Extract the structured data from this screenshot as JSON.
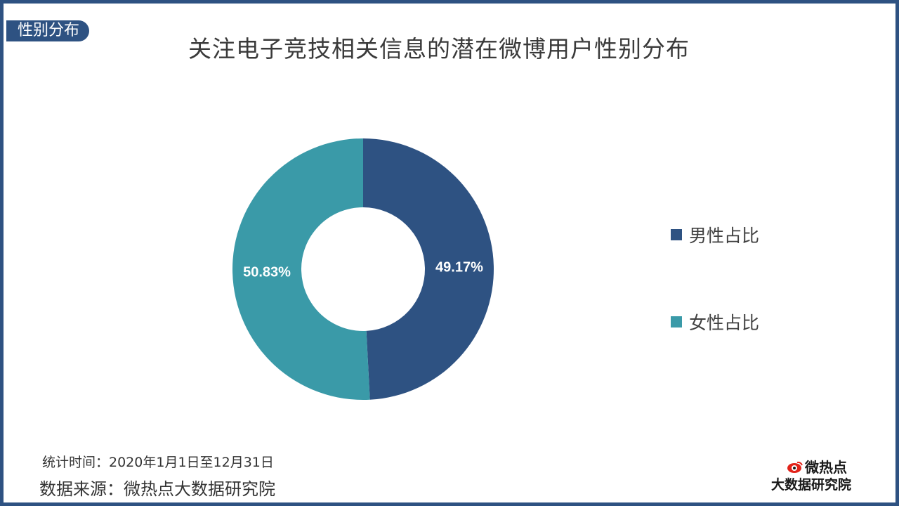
{
  "section_badge": "性别分布",
  "footer": {
    "period": "统计时间：2020年1月1日至12月31日",
    "source": "数据来源：微热点大数据研究院"
  },
  "logo": {
    "brand": "微热点",
    "subtitle": "大数据研究院"
  },
  "colors": {
    "frame": "#2e5282",
    "male": "#2e5282",
    "female": "#3a9aa8"
  },
  "chart_data": {
    "type": "pie",
    "variant": "donut",
    "title": "关注电子竞技相关信息的潜在微博用户性别分布",
    "start_angle_deg": 0,
    "direction": "clockwise",
    "legend_position": "right",
    "series": [
      {
        "name": "男性占比",
        "value": 49.17,
        "label": "49.17%",
        "color": "#2e5282"
      },
      {
        "name": "女性占比",
        "value": 50.83,
        "label": "50.83%",
        "color": "#3a9aa8"
      }
    ]
  }
}
